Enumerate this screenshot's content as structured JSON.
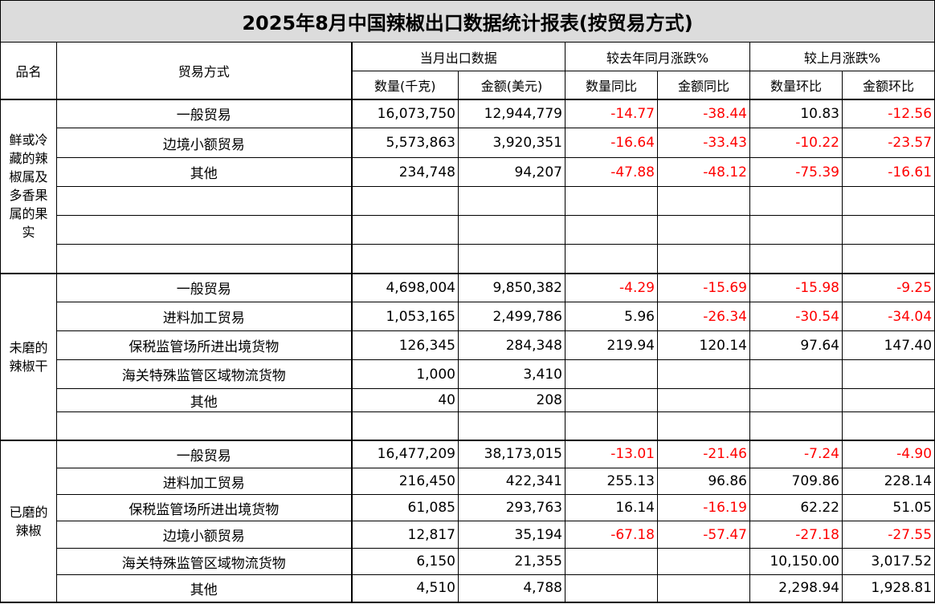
{
  "title": "2025年8月中国辣椒出口数据统计报表(按贸易方式)",
  "header": {
    "product": "品名",
    "mode": "贸易方式",
    "current": "当月出口数据",
    "yoy": "较去年同月涨跌%",
    "mom": "较上月涨跌%",
    "qty": "数量(千克)",
    "amount": "金额(美元)",
    "qty_yoy": "数量同比",
    "amount_yoy": "金额同比",
    "qty_mom": "数量环比",
    "amount_mom": "金额环比"
  },
  "groups": [
    {
      "name": "鲜或冷藏的辣椒属及多香果属的果实",
      "rows": [
        {
          "mode": "一般贸易",
          "qty": "16,073,750",
          "amount": "12,944,779",
          "qty_yoy": "-14.77",
          "amount_yoy": "-38.44",
          "qty_mom": "10.83",
          "amount_mom": "-12.56"
        },
        {
          "mode": "边境小额贸易",
          "qty": "5,573,863",
          "amount": "3,920,351",
          "qty_yoy": "-16.64",
          "amount_yoy": "-33.43",
          "qty_mom": "-10.22",
          "amount_mom": "-23.57"
        },
        {
          "mode": "其他",
          "qty": "234,748",
          "amount": "94,207",
          "qty_yoy": "-47.88",
          "amount_yoy": "-48.12",
          "qty_mom": "-75.39",
          "amount_mom": "-16.61"
        }
      ]
    },
    {
      "name": "未磨的辣椒干",
      "rows": [
        {
          "mode": "一般贸易",
          "qty": "4,698,004",
          "amount": "9,850,382",
          "qty_yoy": "-4.29",
          "amount_yoy": "-15.69",
          "qty_mom": "-15.98",
          "amount_mom": "-9.25"
        },
        {
          "mode": "进料加工贸易",
          "qty": "1,053,165",
          "amount": "2,499,786",
          "qty_yoy": "5.96",
          "amount_yoy": "-26.34",
          "qty_mom": "-30.54",
          "amount_mom": "-34.04"
        },
        {
          "mode": "保税监管场所进出境货物",
          "qty": "126,345",
          "amount": "284,348",
          "qty_yoy": "219.94",
          "amount_yoy": "120.14",
          "qty_mom": "97.64",
          "amount_mom": "147.40"
        },
        {
          "mode": "海关特殊监管区域物流货物",
          "qty": "1,000",
          "amount": "3,410"
        },
        {
          "mode": "其他",
          "qty": "40",
          "amount": "208"
        }
      ]
    },
    {
      "name": "已磨的辣椒",
      "rows": [
        {
          "mode": "一般贸易",
          "qty": "16,477,209",
          "amount": "38,173,015",
          "qty_yoy": "-13.01",
          "amount_yoy": "-21.46",
          "qty_mom": "-7.24",
          "amount_mom": "-4.90"
        },
        {
          "mode": "进料加工贸易",
          "qty": "216,450",
          "amount": "422,341",
          "qty_yoy": "255.13",
          "amount_yoy": "96.86",
          "qty_mom": "709.86",
          "amount_mom": "228.14"
        },
        {
          "mode": "保税监管场所进出境货物",
          "qty": "61,085",
          "amount": "293,763",
          "qty_yoy": "16.14",
          "amount_yoy": "-16.19",
          "qty_mom": "62.22",
          "amount_mom": "51.05"
        },
        {
          "mode": "边境小额贸易",
          "qty": "12,817",
          "amount": "35,194",
          "qty_yoy": "-67.18",
          "amount_yoy": "-57.47",
          "qty_mom": "-27.18",
          "amount_mom": "-27.55"
        },
        {
          "mode": "海关特殊监管区域物流货物",
          "qty": "6,150",
          "amount": "21,355",
          "qty_mom": "10,150.00",
          "amount_mom": "3,017.52"
        },
        {
          "mode": "其他",
          "qty": "4,510",
          "amount": "4,788",
          "qty_mom": "2,298.94",
          "amount_mom": "1,928.81"
        }
      ]
    }
  ]
}
